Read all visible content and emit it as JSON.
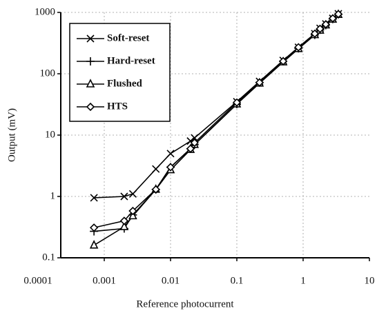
{
  "chart_data": {
    "type": "line",
    "x_label": "Reference photocurrent",
    "y_label": "Output (mV)",
    "x": [
      0.0007,
      0.002,
      0.0027,
      0.006,
      0.01,
      0.02,
      0.023,
      0.1,
      0.22,
      0.5,
      0.85,
      1.5,
      1.8,
      2.2,
      2.8,
      3.4
    ],
    "series": [
      {
        "name": "Soft-reset",
        "color": "#000000",
        "marker": "x",
        "values": [
          0.95,
          1.0,
          1.1,
          2.8,
          5,
          8,
          9,
          35,
          75,
          165,
          270,
          450,
          550,
          650,
          800,
          950
        ]
      },
      {
        "name": "Hard-reset",
        "color": "#000000",
        "marker": "+",
        "values": [
          0.27,
          0.3,
          0.5,
          1.3,
          3,
          6,
          7,
          32,
          72,
          160,
          260,
          430,
          520,
          620,
          780,
          930
        ]
      },
      {
        "name": "Flushed",
        "color": "#000000",
        "marker": "triangle",
        "values": [
          0.16,
          0.32,
          0.48,
          1.3,
          2.7,
          5.8,
          7,
          32,
          70,
          155,
          255,
          430,
          510,
          620,
          770,
          920
        ]
      },
      {
        "name": "HTS",
        "color": "#000000",
        "marker": "diamond",
        "values": [
          0.31,
          0.4,
          0.58,
          1.3,
          3,
          6,
          7.5,
          34,
          72,
          160,
          270,
          450,
          540,
          640,
          800,
          940
        ]
      }
    ],
    "xlog": true,
    "ylog": true,
    "xlim": [
      0.0001,
      10
    ],
    "ylim": [
      0.1,
      1000
    ],
    "xticks": [
      0.0001,
      0.001,
      0.01,
      0.1,
      1,
      10
    ],
    "yticks": [
      0.1,
      1,
      10,
      100,
      1000
    ],
    "grid": true,
    "legend": "upper left"
  }
}
